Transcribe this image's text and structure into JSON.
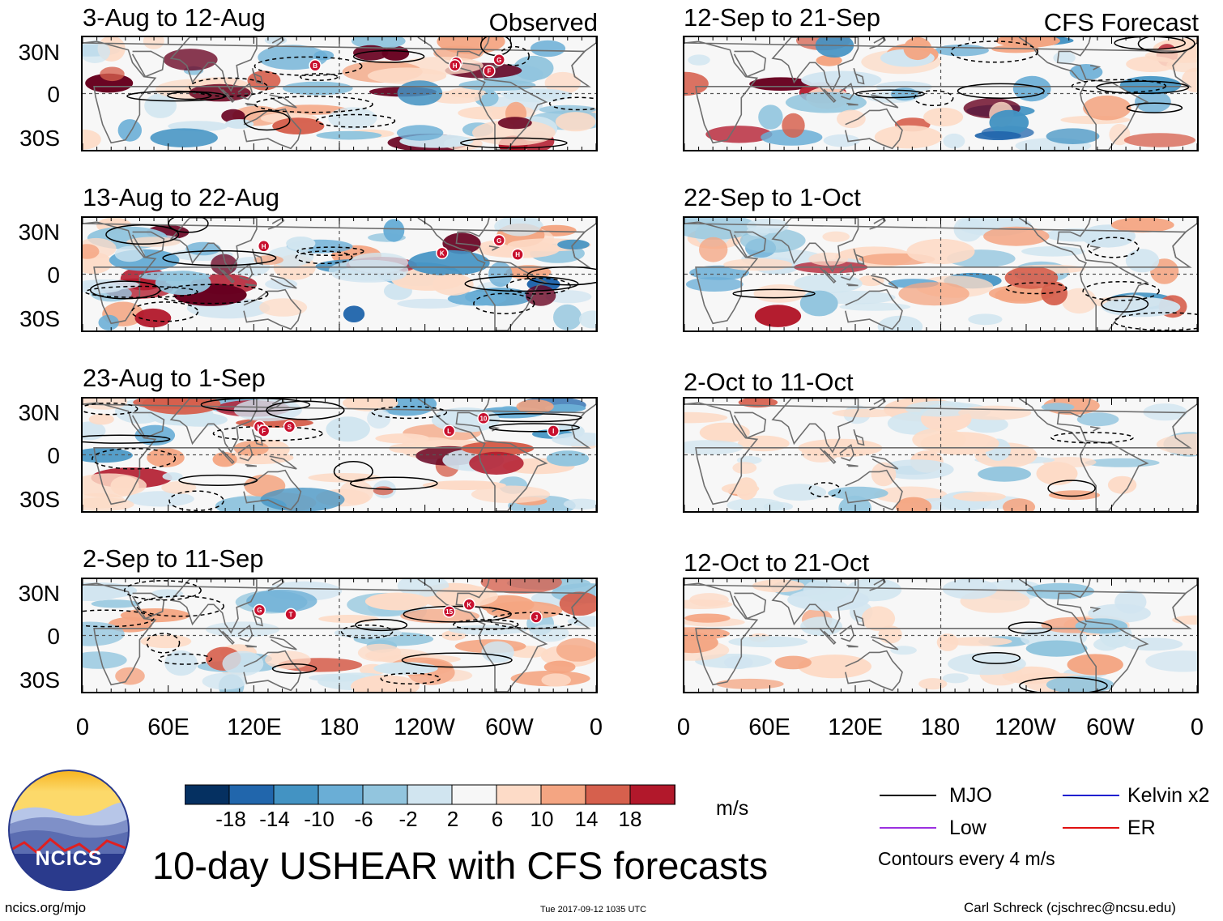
{
  "chart_data": {
    "type": "heatmap",
    "title": "10-day USHEAR with CFS forecasts",
    "variable": "USHEAR",
    "units": "m/s",
    "contour_note": "Contours every 4 m/s",
    "columns": [
      {
        "label": "Observed",
        "panels": [
          "3-Aug to 12-Aug",
          "13-Aug to 22-Aug",
          "23-Aug to 1-Sep",
          "2-Sep to 11-Sep"
        ]
      },
      {
        "label": "CFS Forecast",
        "panels": [
          "12-Sep to 21-Sep",
          "22-Sep to 1-Oct",
          "2-Oct to 11-Oct",
          "12-Oct to 21-Oct"
        ]
      }
    ],
    "y_ticks": [
      "30N",
      "0",
      "30S"
    ],
    "x_ticks": [
      "0",
      "60E",
      "120E",
      "180",
      "120W",
      "60W",
      "0"
    ],
    "colorbar_ticks": [
      "-18",
      "-14",
      "-10",
      "-6",
      "-2",
      "2",
      "6",
      "10",
      "14",
      "18"
    ],
    "colorbar_colors": [
      "#053061",
      "#2166ac",
      "#4393c3",
      "#6aaed6",
      "#92c5de",
      "#d1e5f0",
      "#f7f7f7",
      "#fddbc7",
      "#f4a582",
      "#d6604d",
      "#b2182b",
      "#67001f"
    ],
    "legend": [
      {
        "label": "MJO",
        "color": "#000000"
      },
      {
        "label": "Kelvin x2",
        "color": "#1f1fd0"
      },
      {
        "label": "Low",
        "color": "#9b30e0"
      },
      {
        "label": "ER",
        "color": "#e01010"
      }
    ],
    "storm_markers": [
      [
        "B",
        "I",
        "H",
        "F",
        "G"
      ],
      [
        "H",
        "K",
        "G",
        "H"
      ],
      [
        "M",
        "F",
        "S",
        "L",
        "10",
        "I"
      ],
      [
        "G",
        "T",
        "15",
        "K",
        "J"
      ]
    ]
  },
  "footer": {
    "logo_text": "NCICS",
    "site": "ncics.org/mjo",
    "timestamp": "Tue 2017-09-12 1035 UTC",
    "author": "Carl Schreck (cjschrec@ncsu.edu)"
  }
}
